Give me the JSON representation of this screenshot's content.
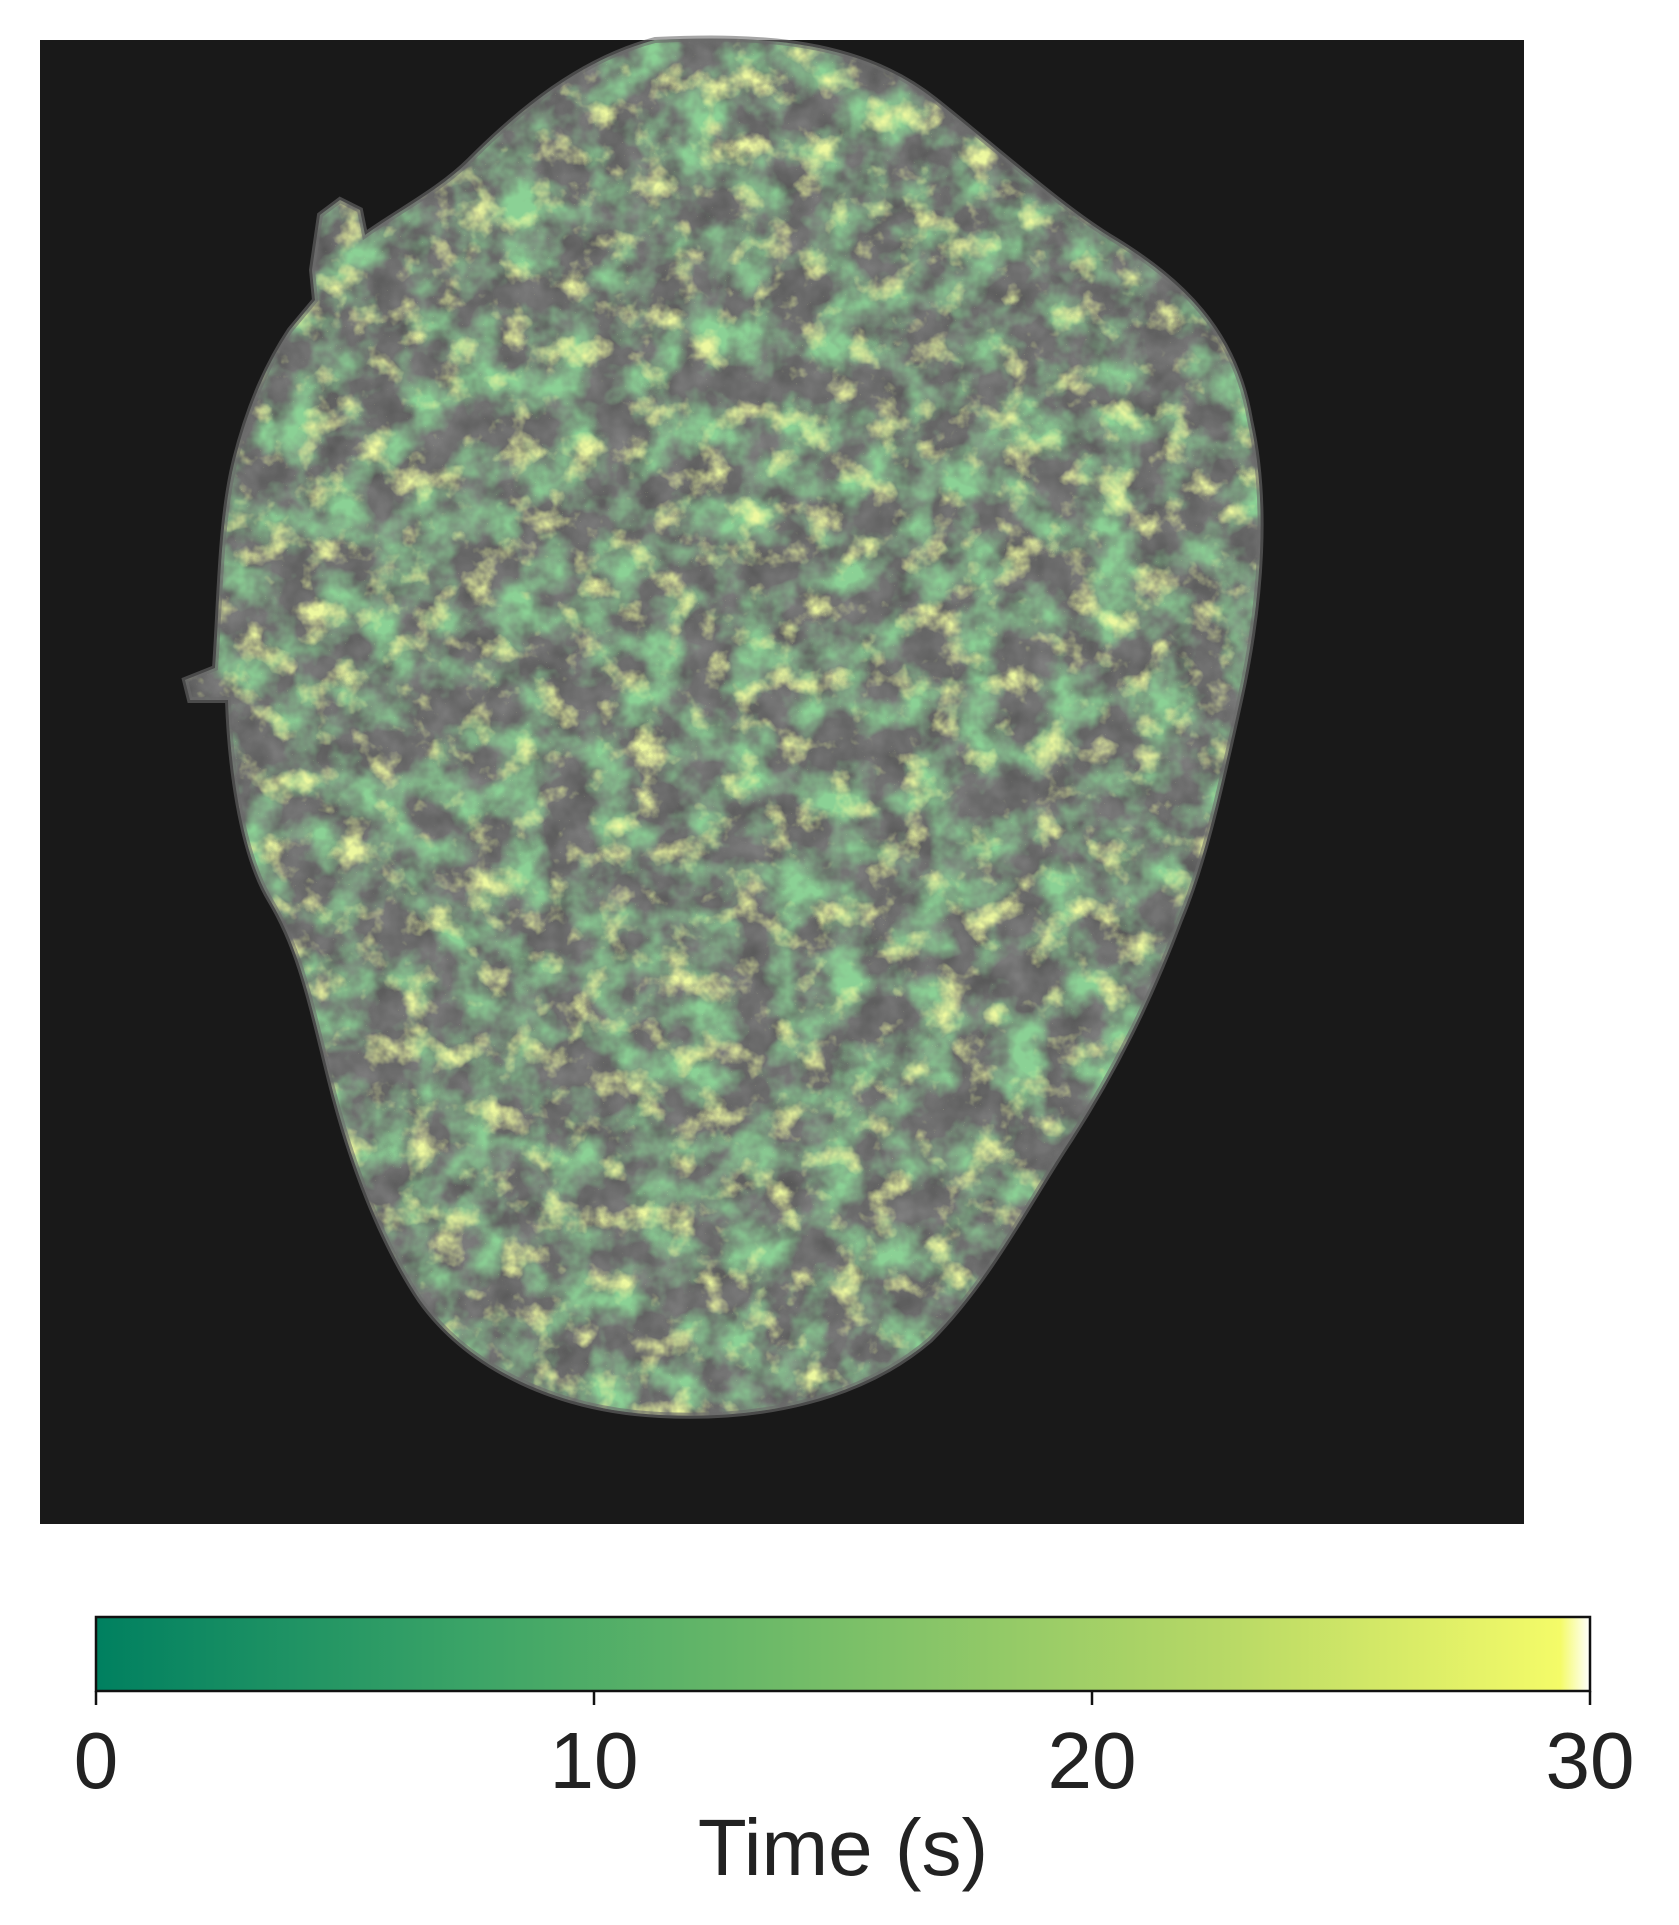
{
  "figure": {
    "image": {
      "background_color": "#191919",
      "cell_gray_color": "#5c5c5c",
      "description_tags": [
        "nucleus",
        "time-colored localization map"
      ]
    },
    "colorbar": {
      "cmap_colors": [
        "#008060",
        "#3ba467",
        "#79bf68",
        "#b6d866",
        "#f4fb68",
        "#ffff66"
      ],
      "ticks": [
        {
          "value": 0,
          "label": "0"
        },
        {
          "value": 10,
          "label": "10"
        },
        {
          "value": 20,
          "label": "20"
        },
        {
          "value": 30,
          "label": "30"
        }
      ],
      "range": [
        0,
        30
      ],
      "label": "Time (s)"
    }
  }
}
